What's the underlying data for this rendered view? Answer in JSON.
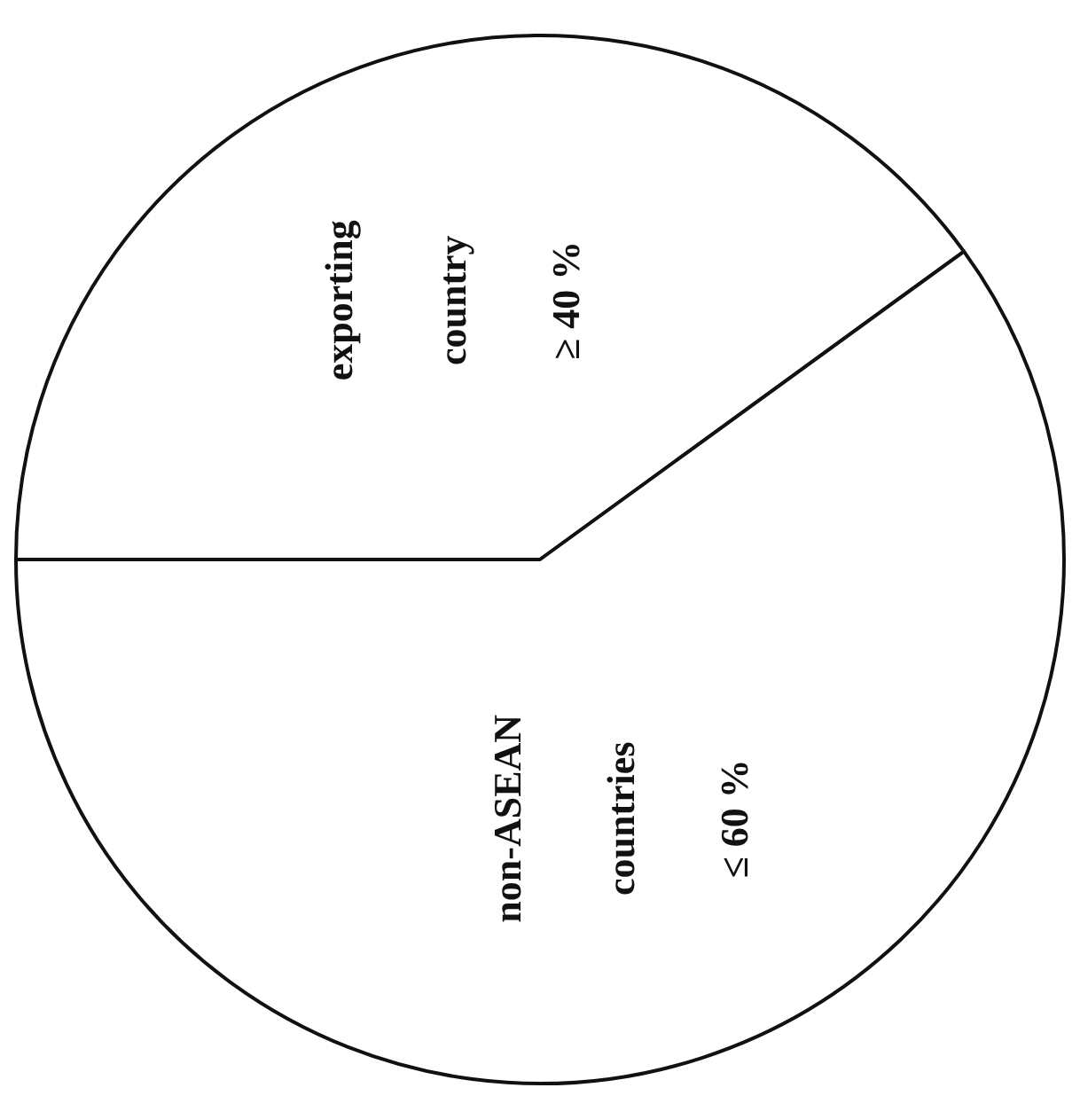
{
  "chart_data": {
    "type": "pie",
    "categories": [
      "exporting country",
      "non-ASEAN countries"
    ],
    "values": [
      40,
      60
    ],
    "value_labels": [
      "≥ 40 %",
      "≤ 60 %"
    ],
    "colors": [
      "#ffffff",
      "#ffffff"
    ]
  }
}
